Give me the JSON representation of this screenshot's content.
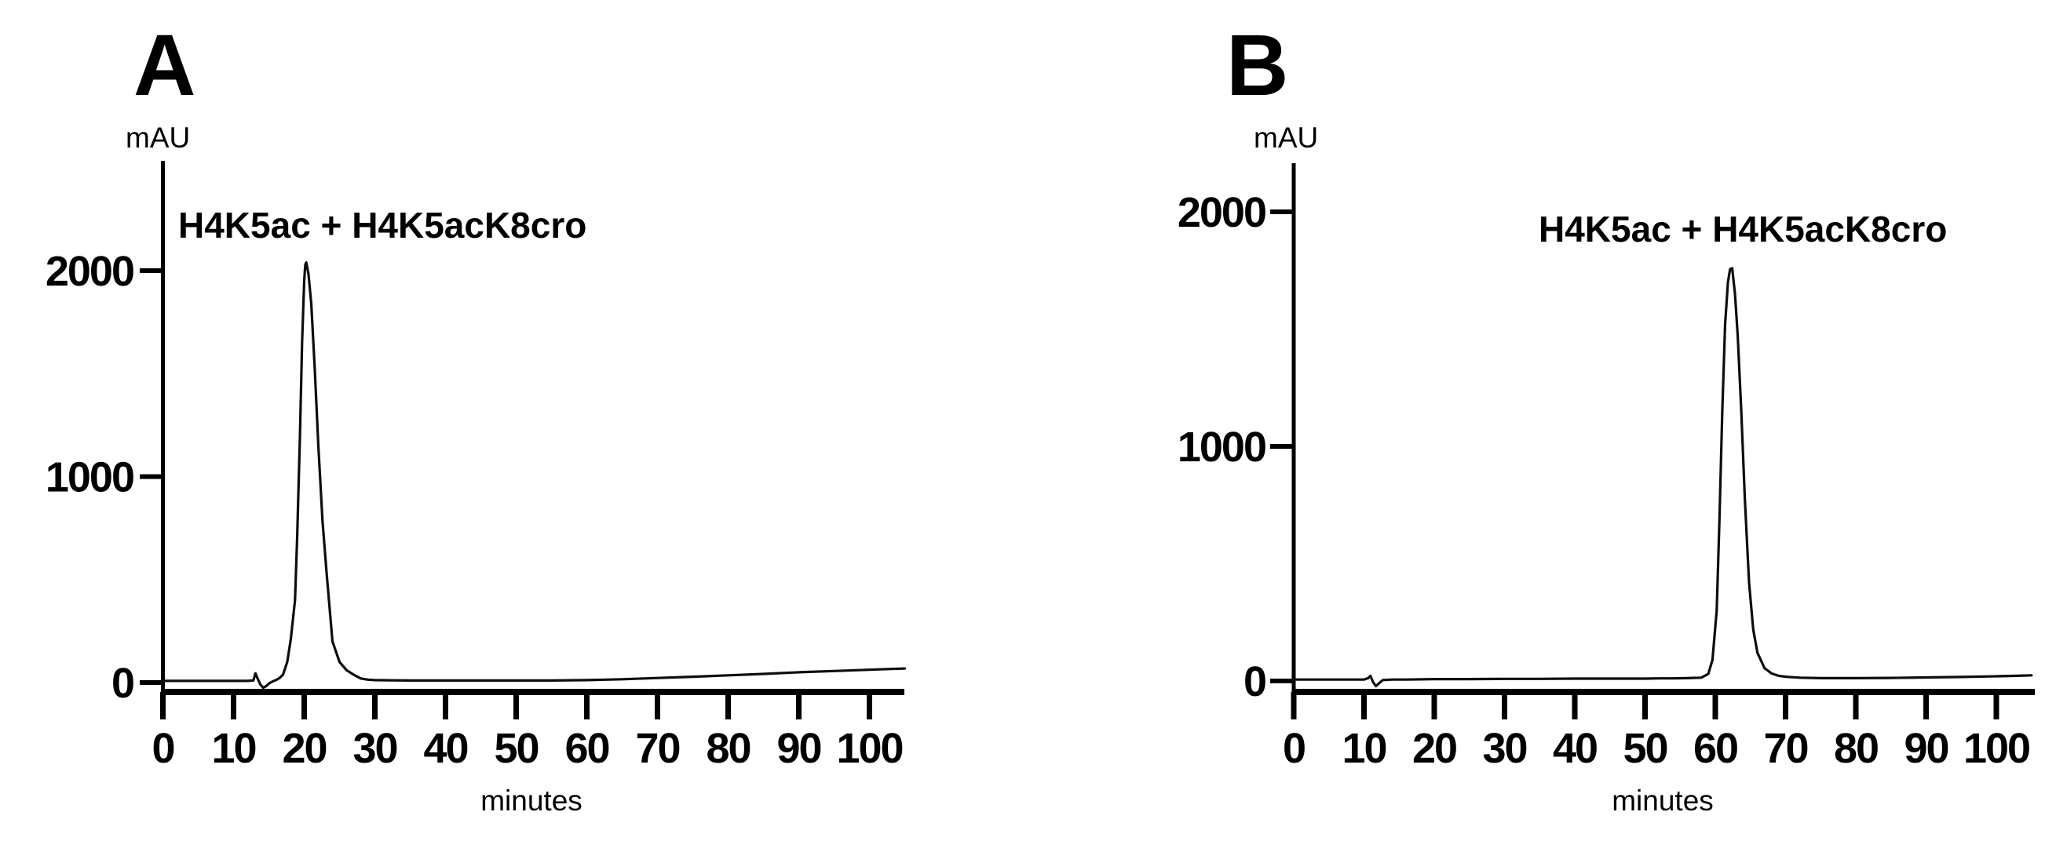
{
  "figure": {
    "background_color": "#ffffff",
    "line_color": "#0d0d0d",
    "description_kind": "two-panel chromatogram figure"
  },
  "panels": [
    {
      "letter": "A",
      "y_unit": "mAU",
      "x_label": "minutes",
      "annotation": "H4K5ac + H4K5acK8cro"
    },
    {
      "letter": "B",
      "y_unit": "mAU",
      "x_label": "minutes",
      "annotation": "H4K5ac + H4K5acK8cro"
    }
  ],
  "chart_data": [
    {
      "type": "line",
      "panel": "A",
      "title": "",
      "xlabel": "minutes",
      "ylabel": "mAU",
      "annotation": "H4K5ac + H4K5acK8cro",
      "x_ticks": [
        0,
        10,
        20,
        30,
        40,
        50,
        60,
        70,
        80,
        90,
        100
      ],
      "y_ticks": [
        0,
        1000,
        2000
      ],
      "xlim": [
        0,
        105
      ],
      "ylim": [
        0,
        2530
      ],
      "grid": false,
      "legend": "none",
      "peak": {
        "apex_min": 20.3,
        "apex_mAU": 2040
      },
      "series": [
        {
          "name": "absorbance-trace",
          "x": [
            0,
            2,
            4,
            6,
            8,
            10,
            12,
            12.8,
            13.1,
            13.4,
            13.8,
            14.2,
            14.6,
            15.0,
            15.5,
            16.0,
            16.5,
            17.0,
            17.6,
            18.1,
            18.7,
            19.0,
            19.4,
            19.7,
            20.0,
            20.15,
            20.3,
            20.6,
            21.0,
            21.5,
            22.0,
            22.6,
            23.2,
            24.0,
            25.0,
            26.0,
            27.0,
            28.0,
            29.0,
            30.0,
            32,
            35,
            40,
            45,
            50,
            55,
            60,
            65,
            70,
            75,
            80,
            85,
            90,
            95,
            100,
            103,
            105
          ],
          "y": [
            8,
            8,
            8,
            8,
            8,
            8,
            8,
            10,
            45,
            20,
            -10,
            -25,
            -18,
            -5,
            5,
            12,
            22,
            38,
            100,
            210,
            400,
            700,
            1200,
            1650,
            1950,
            2030,
            2040,
            1985,
            1840,
            1520,
            1150,
            780,
            520,
            200,
            100,
            60,
            38,
            20,
            14,
            12,
            11,
            10,
            10,
            10,
            10,
            10,
            12,
            16,
            22,
            28,
            35,
            42,
            50,
            56,
            62,
            66,
            68
          ]
        }
      ]
    },
    {
      "type": "line",
      "panel": "B",
      "title": "",
      "xlabel": "minutes",
      "ylabel": "mAU",
      "annotation": "H4K5ac + H4K5acK8cro",
      "x_ticks": [
        0,
        10,
        20,
        30,
        40,
        50,
        60,
        70,
        80,
        90,
        100
      ],
      "y_ticks": [
        0,
        1000,
        2000
      ],
      "xlim": [
        0,
        105
      ],
      "ylim": [
        0,
        2200
      ],
      "grid": false,
      "legend": "none",
      "peak": {
        "apex_min": 62.3,
        "apex_mAU": 1760
      },
      "series": [
        {
          "name": "absorbance-trace",
          "x": [
            0,
            2,
            4,
            6,
            8,
            10,
            10.6,
            10.9,
            11.3,
            11.7,
            12.2,
            12.7,
            14,
            16,
            20,
            25,
            30,
            35,
            40,
            45,
            50,
            52,
            54,
            56,
            58,
            59.0,
            59.6,
            60.2,
            60.6,
            61.0,
            61.4,
            61.8,
            62.1,
            62.4,
            62.8,
            63.2,
            63.7,
            64.2,
            64.8,
            65.4,
            66,
            67,
            68,
            69,
            70,
            72,
            75,
            80,
            85,
            90,
            95,
            100,
            103,
            105
          ],
          "y": [
            6,
            6,
            6,
            6,
            6,
            6,
            12,
            22,
            -5,
            -22,
            -8,
            4,
            6,
            6,
            8,
            8,
            9,
            9,
            10,
            10,
            10,
            11,
            11,
            12,
            14,
            30,
            90,
            300,
            700,
            1150,
            1520,
            1700,
            1755,
            1760,
            1650,
            1470,
            1150,
            780,
            420,
            220,
            120,
            55,
            32,
            22,
            18,
            14,
            12,
            12,
            13,
            15,
            17,
            20,
            22,
            24
          ]
        }
      ]
    }
  ]
}
